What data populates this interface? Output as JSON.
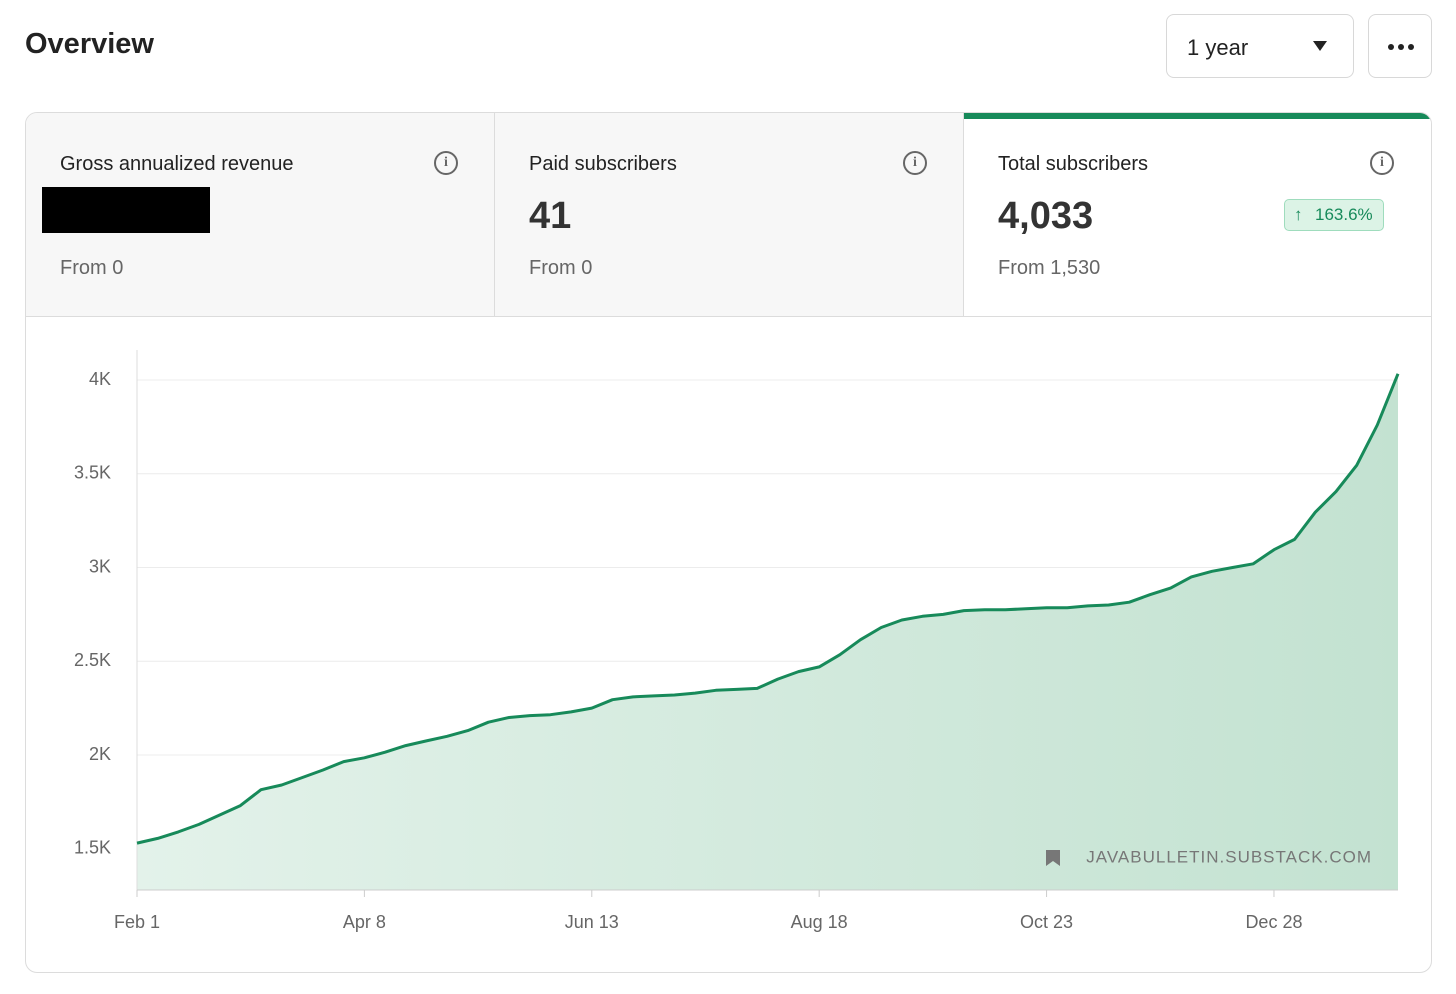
{
  "header": {
    "title": "Overview",
    "period": "1 year"
  },
  "cards": [
    {
      "title": "Gross annualized revenue",
      "from": "From 0"
    },
    {
      "title": "Paid subscribers",
      "value": "41",
      "from": "From 0"
    },
    {
      "title": "Total subscribers",
      "value": "4,033",
      "from": "From 1,530",
      "change": "163.6%"
    }
  ],
  "watermark": "JAVABULLETIN.SUBSTACK.COM",
  "chart_data": {
    "type": "area",
    "categories": [
      "Feb 1",
      null,
      null,
      null,
      null,
      null,
      null,
      null,
      null,
      null,
      null,
      "Apr 8",
      null,
      null,
      null,
      null,
      null,
      null,
      null,
      null,
      null,
      null,
      "Jun 13",
      null,
      null,
      null,
      null,
      null,
      null,
      null,
      null,
      null,
      null,
      "Aug 18",
      null,
      null,
      null,
      null,
      null,
      null,
      null,
      null,
      null,
      null,
      "Oct 23",
      null,
      null,
      null,
      null,
      null,
      null,
      null,
      null,
      null,
      null,
      "Dec 28",
      null,
      null,
      null,
      null,
      null,
      null
    ],
    "series": [
      {
        "name": "Total subscribers",
        "color": "#178a5a",
        "values": [
          1530,
          1555,
          1590,
          1630,
          1680,
          1730,
          1815,
          1840,
          1880,
          1920,
          1965,
          1985,
          2015,
          2050,
          2075,
          2100,
          2130,
          2175,
          2200,
          2210,
          2215,
          2230,
          2250,
          2295,
          2310,
          2315,
          2320,
          2330,
          2345,
          2350,
          2355,
          2405,
          2445,
          2470,
          2535,
          2615,
          2680,
          2720,
          2740,
          2750,
          2770,
          2775,
          2775,
          2780,
          2785,
          2785,
          2795,
          2800,
          2815,
          2855,
          2890,
          2950,
          2980,
          3000,
          3020,
          3095,
          3150,
          3295,
          3405,
          3545,
          3760,
          4033
        ]
      }
    ],
    "ylim": [
      1280,
      4160
    ],
    "yticks": [
      {
        "value": 1500,
        "label": "1.5K"
      },
      {
        "value": 2000,
        "label": "2K"
      },
      {
        "value": 2500,
        "label": "2.5K"
      },
      {
        "value": 3000,
        "label": "3K"
      },
      {
        "value": 3500,
        "label": "3.5K"
      },
      {
        "value": 4000,
        "label": "4K"
      }
    ],
    "grid": true
  }
}
